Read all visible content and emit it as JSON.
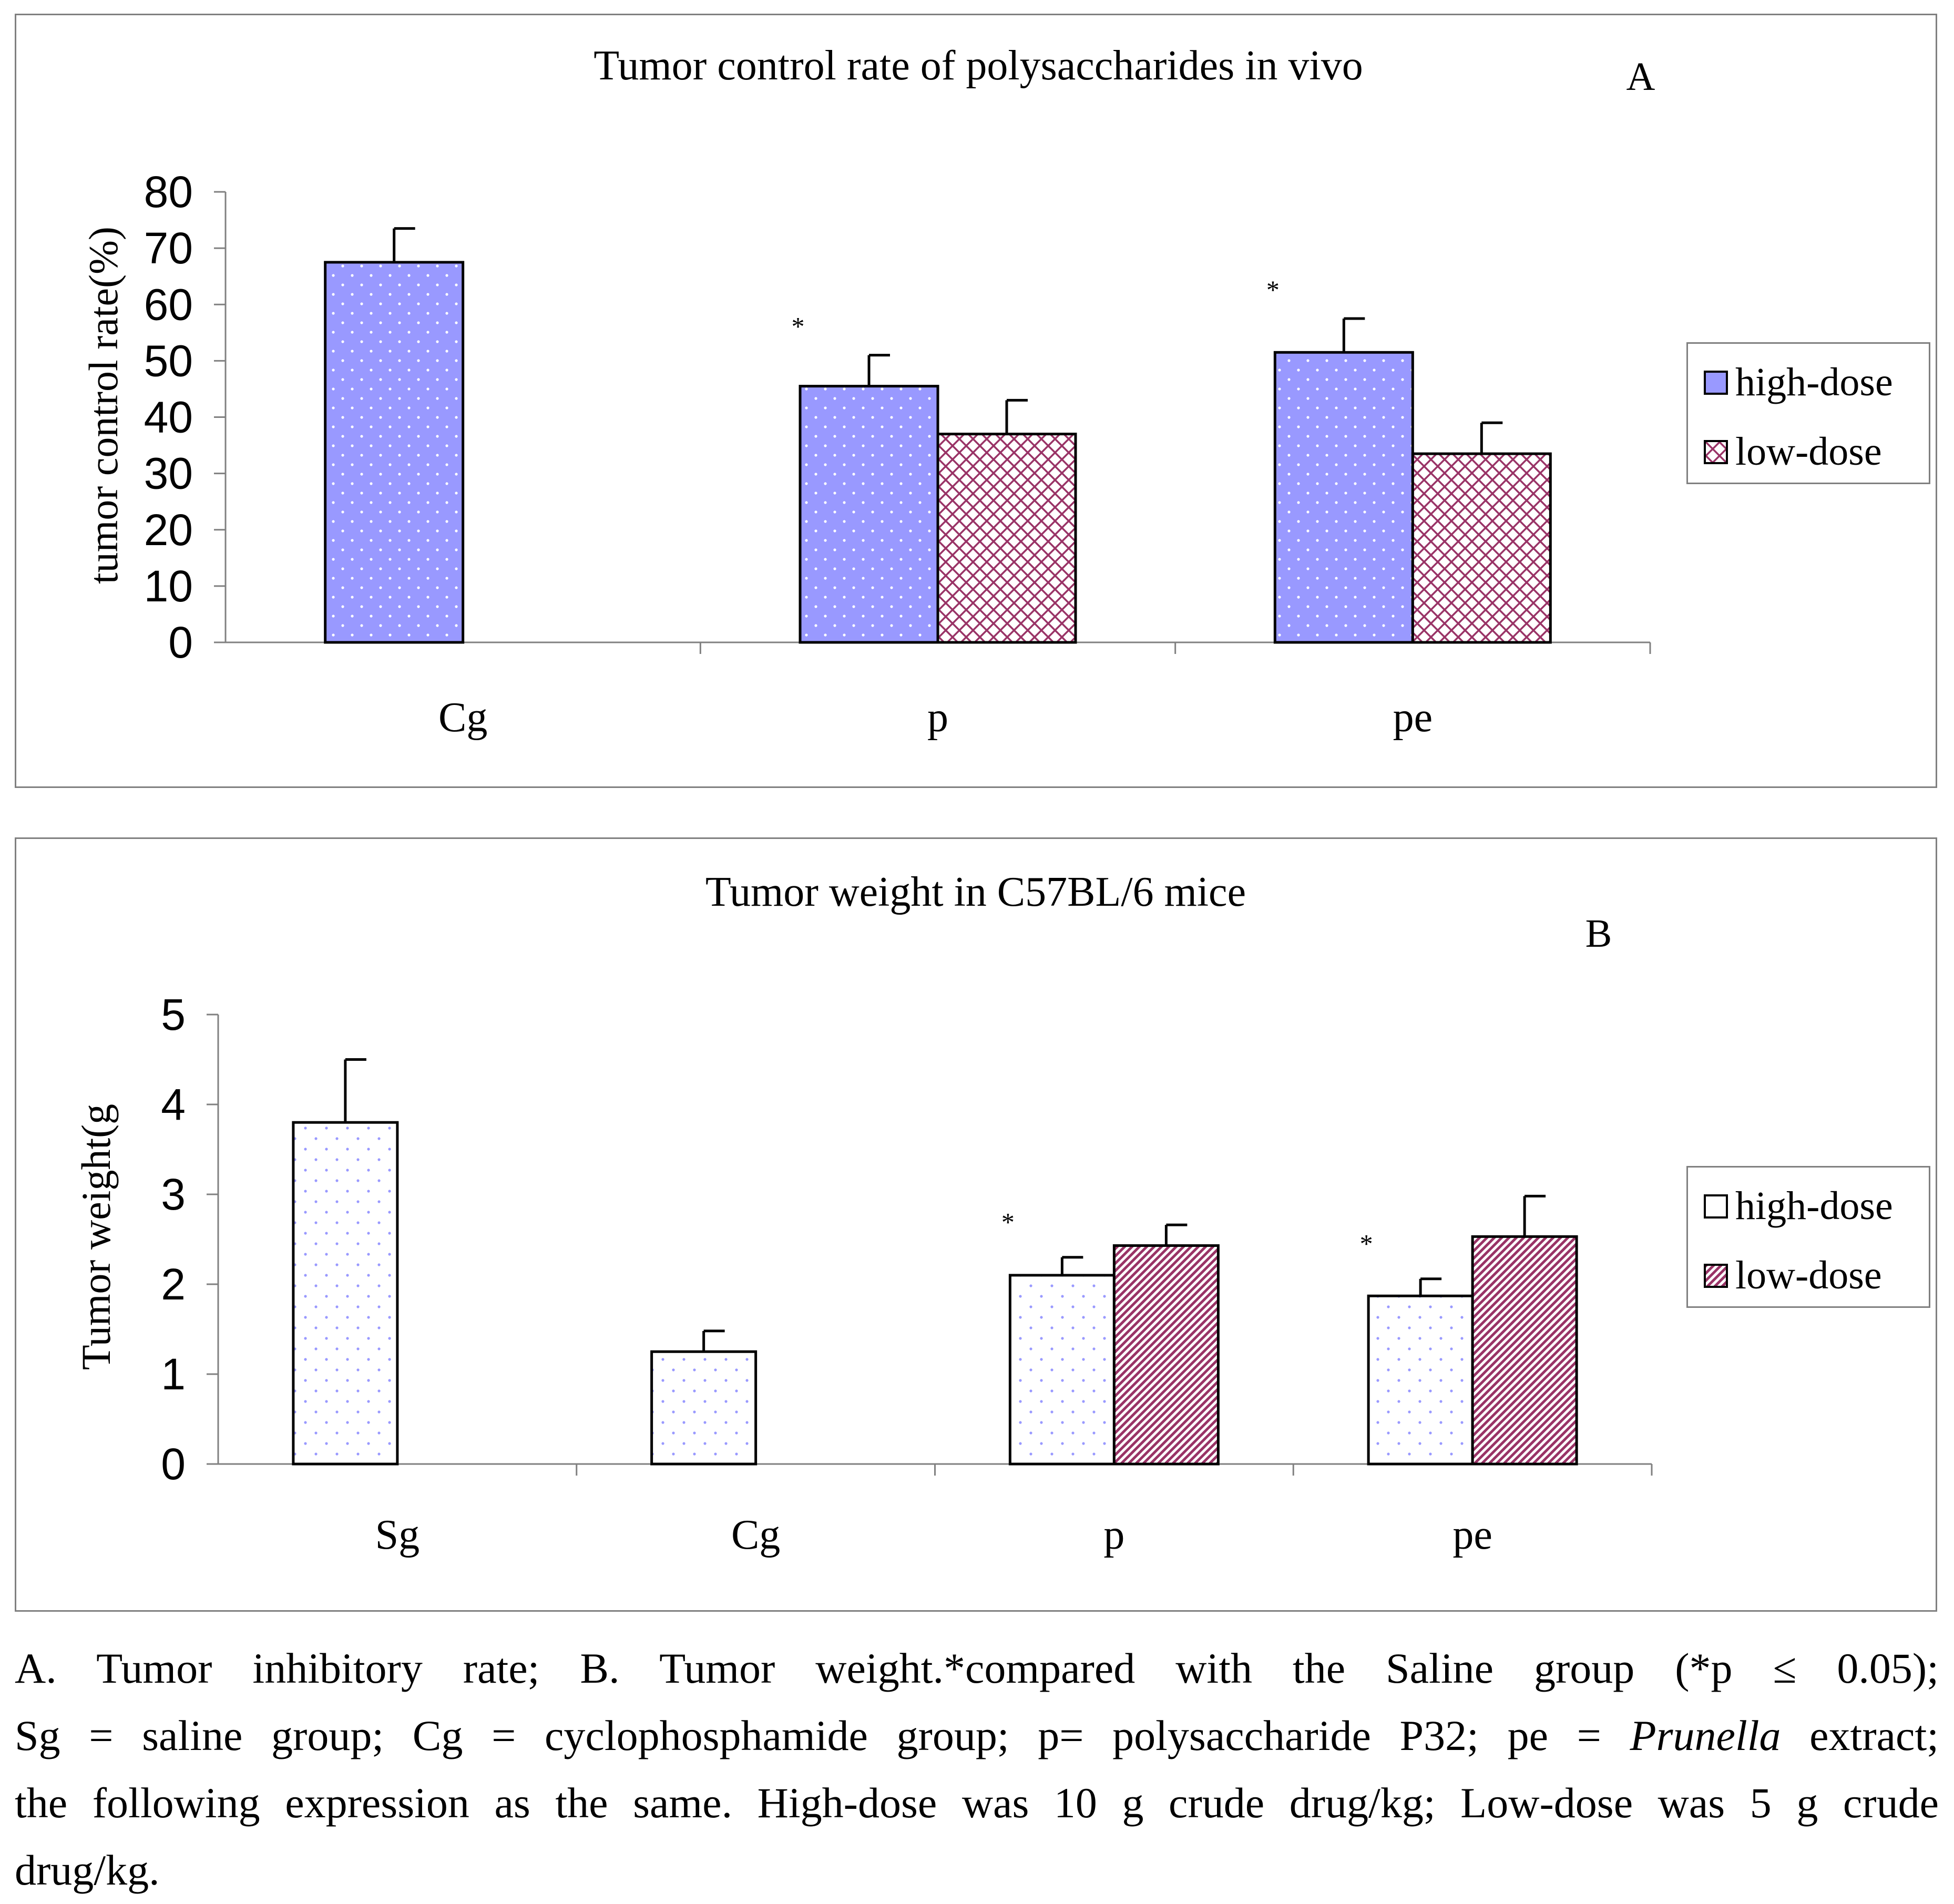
{
  "chart_data": [
    {
      "type": "bar",
      "panel_label": "A",
      "title": "Tumor control rate of polysaccharides in vivo",
      "xlabel": "",
      "ylabel": "tumor control rate(%)",
      "ylim": [
        0,
        80
      ],
      "yticks": [
        "0",
        "10",
        "20",
        "30",
        "40",
        "50",
        "60",
        "70",
        "80"
      ],
      "categories": [
        "Cg",
        "p",
        "pe"
      ],
      "series": [
        {
          "name": "high-dose",
          "values": [
            67.5,
            45.5,
            51.5
          ],
          "errors": [
            6,
            5.5,
            6
          ]
        },
        {
          "name": "low-dose",
          "values": [
            null,
            37,
            33.5
          ],
          "errors": [
            null,
            6,
            5.5
          ]
        }
      ],
      "annotations": [
        {
          "category": "p",
          "series": "high-dose",
          "text": "*"
        },
        {
          "category": "pe",
          "series": "high-dose",
          "text": "*"
        }
      ],
      "legend_position": "right"
    },
    {
      "type": "bar",
      "panel_label": "B",
      "title": "Tumor weight in C57BL/6 mice",
      "xlabel": "",
      "ylabel": "Tumor weight(g",
      "ylim": [
        0,
        5
      ],
      "yticks": [
        "0",
        "1",
        "2",
        "3",
        "4",
        "5"
      ],
      "categories": [
        "Sg",
        "Cg",
        "p",
        "pe"
      ],
      "series": [
        {
          "name": "high-dose",
          "values": [
            3.8,
            1.25,
            2.1,
            1.87
          ],
          "errors": [
            0.7,
            0.23,
            0.2,
            0.19
          ]
        },
        {
          "name": "low-dose",
          "values": [
            null,
            null,
            2.43,
            2.53
          ],
          "errors": [
            null,
            null,
            0.23,
            0.45
          ]
        }
      ],
      "annotations": [
        {
          "category": "p",
          "series": "high-dose",
          "text": "*"
        },
        {
          "category": "pe",
          "series": "high-dose",
          "text": "*"
        }
      ],
      "legend_position": "right"
    }
  ],
  "legend": {
    "a": [
      "high-dose",
      "low-dose"
    ],
    "b": [
      "high-dose",
      "low-dose"
    ]
  },
  "caption": {
    "line1": "A. Tumor inhibitory rate; B. Tumor weight.*compared with the Saline group (*p ≤ 0.05);",
    "line2_pre": "Sg = saline group; Cg = cyclophosphamide group; p= polysaccharide P32; pe = ",
    "line2_italic": "Prunella",
    "line2_post": " extract;",
    "line3": "the following expression as the same. High-dose was 10 g crude drug/kg; Low-dose was 5 g crude",
    "line4": "drug/kg."
  },
  "colors": {
    "highA": "#9999ff",
    "lowA": "#993366",
    "highB_dots": "#9999ff",
    "lowB": "#993366",
    "border": "#808080"
  }
}
